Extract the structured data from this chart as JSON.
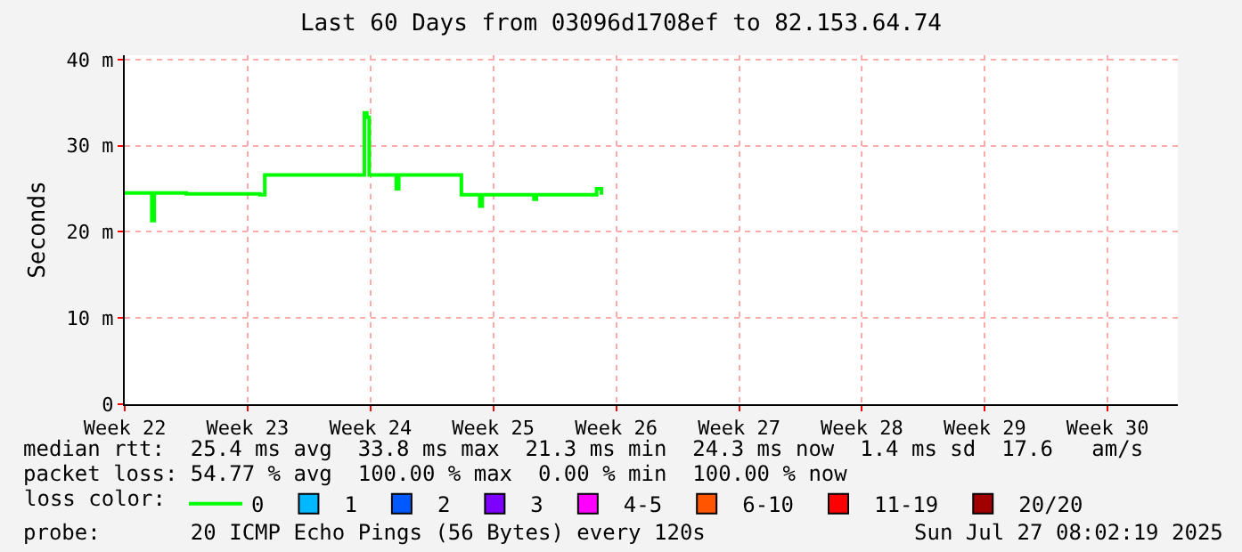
{
  "chart_data": {
    "type": "line",
    "title": "Last 60 Days from 03096d1708ef to 82.153.64.74",
    "ylabel": "Seconds",
    "legend_title": "loss color:",
    "xlim": [
      "2025-05-26",
      "2025-07-25"
    ],
    "xticks": [
      {
        "value": "2025-05-26",
        "label": "Week 22"
      },
      {
        "value": "2025-06-02",
        "label": "Week 23"
      },
      {
        "value": "2025-06-09",
        "label": "Week 24"
      },
      {
        "value": "2025-06-16",
        "label": "Week 25"
      },
      {
        "value": "2025-06-23",
        "label": "Week 26"
      },
      {
        "value": "2025-06-30",
        "label": "Week 27"
      },
      {
        "value": "2025-07-07",
        "label": "Week 28"
      },
      {
        "value": "2025-07-14",
        "label": "Week 29"
      },
      {
        "value": "2025-07-21",
        "label": "Week 30"
      }
    ],
    "ylim": [
      0,
      40.5
    ],
    "yticks": [
      0,
      {
        "value": 10,
        "label": "10 m"
      },
      {
        "value": 20,
        "label": "20 m"
      },
      {
        "value": 30,
        "label": "30 m"
      },
      {
        "value": 40,
        "label": "40 m"
      }
    ],
    "grid": true,
    "legend": "bottom",
    "marker": "none",
    "line_style": "solid",
    "series": [
      {
        "name": "0",
        "color": "#00ff00",
        "x": [
          "2025-05-26T00:00",
          "2025-05-27T09:40",
          "2025-05-27T13:00",
          "2025-05-27T16:20",
          "2025-05-29T12:00",
          "2025-06-02T16:50",
          "2025-06-02T23:30",
          "2025-06-08T12:10",
          "2025-06-08T15:40",
          "2025-06-08T19:00",
          "2025-06-08T22:20",
          "2025-06-10T09:40",
          "2025-06-10T11:20",
          "2025-06-10T14:40",
          "2025-06-14T01:00",
          "2025-06-14T04:20",
          "2025-06-15T03:50",
          "2025-06-15T05:30",
          "2025-06-15T08:50",
          "2025-06-18T02:20",
          "2025-06-18T07:30",
          "2025-06-18T10:50",
          "2025-06-21T14:20",
          "2025-06-21T21:10",
          "2025-06-22T03:50"
        ],
        "values": [
          24.5,
          24.5,
          21.3,
          24.5,
          24.4,
          24.3,
          26.6,
          26.6,
          33.8,
          33.3,
          26.6,
          26.6,
          25.0,
          26.6,
          26.6,
          24.3,
          24.3,
          23.0,
          24.3,
          24.3,
          23.8,
          24.3,
          24.3,
          25.0,
          24.3
        ]
      },
      {
        "name": "1",
        "color": "#00b8ff"
      },
      {
        "name": "2",
        "color": "#0059ff"
      },
      {
        "name": "3",
        "color": "#7e00ff"
      },
      {
        "name": "4-5",
        "color": "#ff00ff"
      },
      {
        "name": "6-10",
        "color": "#ff5500"
      },
      {
        "name": "11-19",
        "color": "#ff0000"
      },
      {
        "name": "20/20",
        "color": "#a10000"
      }
    ],
    "annotations": [
      "median rtt:  25.4 ms avg  33.8 ms max  21.3 ms min  24.3 ms now  1.4 ms sd  17.6   am/s",
      "packet loss: 54.77 % avg  100.00 % max  0.00 % min  100.00 % now",
      "probe:       20 ICMP Echo Pings (56 Bytes) every 120s",
      "Sun Jul 27 08:02:19 2025"
    ]
  }
}
